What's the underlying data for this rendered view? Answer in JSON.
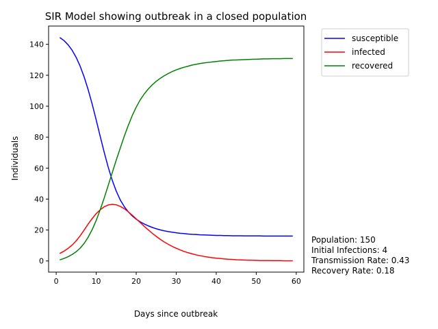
{
  "chart_data": {
    "type": "line",
    "title": "SIR Model showing outbreak in a closed population",
    "xlabel": "Days since outbreak",
    "ylabel": "Individuals",
    "xlim": [
      -1.9,
      61.9
    ],
    "ylim": [
      -7.2,
      151.8
    ],
    "xticks": [
      0,
      10,
      20,
      30,
      40,
      50,
      60
    ],
    "yticks": [
      0,
      20,
      40,
      60,
      80,
      100,
      120,
      140
    ],
    "grid": false,
    "legend_position": "outside top-right",
    "x": [
      1,
      2,
      3,
      4,
      5,
      6,
      7,
      8,
      9,
      10,
      11,
      12,
      13,
      14,
      15,
      16,
      17,
      18,
      19,
      20,
      21,
      22,
      23,
      24,
      25,
      26,
      27,
      28,
      29,
      30,
      31,
      32,
      33,
      34,
      35,
      36,
      37,
      38,
      39,
      40,
      41,
      42,
      43,
      44,
      45,
      46,
      47,
      48,
      49,
      50,
      51,
      52,
      53,
      54,
      55,
      56,
      57,
      58,
      59
    ],
    "series": [
      {
        "name": "susceptible",
        "color": "#0000ff",
        "values": [
          144.2,
          142.3,
          139.6,
          136.1,
          131.5,
          125.8,
          118.8,
          110.6,
          101.3,
          91.1,
          80.5,
          70.2,
          60.6,
          52.2,
          45.2,
          39.5,
          35.2,
          31.8,
          29.1,
          27.0,
          25.3,
          23.9,
          22.7,
          21.7,
          20.8,
          20.1,
          19.5,
          19.0,
          18.6,
          18.2,
          17.9,
          17.7,
          17.4,
          17.2,
          17.1,
          16.9,
          16.8,
          16.7,
          16.6,
          16.5,
          16.5,
          16.4,
          16.4,
          16.3,
          16.3,
          16.3,
          16.2,
          16.2,
          16.2,
          16.2,
          16.2,
          16.1,
          16.1,
          16.1,
          16.1,
          16.1,
          16.1,
          16.1,
          16.1
        ]
      },
      {
        "name": "infected",
        "color": "#ff0000",
        "values": [
          5.0,
          6.4,
          8.2,
          10.3,
          13.0,
          16.3,
          20.0,
          23.9,
          27.4,
          30.6,
          33.1,
          35.0,
          36.2,
          36.6,
          36.3,
          35.3,
          33.8,
          31.8,
          29.6,
          27.2,
          24.8,
          22.4,
          20.1,
          17.9,
          15.9,
          14.0,
          12.3,
          10.8,
          9.4,
          8.2,
          7.1,
          6.1,
          5.3,
          4.6,
          3.9,
          3.4,
          2.9,
          2.5,
          2.1,
          1.8,
          1.6,
          1.3,
          1.1,
          1.0,
          0.8,
          0.7,
          0.6,
          0.5,
          0.5,
          0.4,
          0.3,
          0.3,
          0.3,
          0.2,
          0.2,
          0.2,
          0.1,
          0.1,
          0.1
        ]
      },
      {
        "name": "recovered",
        "color": "#008000",
        "values": [
          0.8,
          1.7,
          2.8,
          4.2,
          6.0,
          8.3,
          11.4,
          15.4,
          20.3,
          26.2,
          33.1,
          40.7,
          48.8,
          57.0,
          65.1,
          72.8,
          80.5,
          87.5,
          93.9,
          99.4,
          104.1,
          107.9,
          111.1,
          113.8,
          116.1,
          118.0,
          119.7,
          121.1,
          122.4,
          123.5,
          124.4,
          125.2,
          125.9,
          126.6,
          127.1,
          127.6,
          128.0,
          128.3,
          128.6,
          128.9,
          129.2,
          129.4,
          129.6,
          129.8,
          129.9,
          130.0,
          130.1,
          130.2,
          130.3,
          130.4,
          130.5,
          130.6,
          130.6,
          130.7,
          130.7,
          130.7,
          130.8,
          130.8,
          130.8
        ]
      }
    ],
    "annotation": {
      "lines": [
        "Population: 150",
        "Initial Infections: 4",
        "Transmission Rate: 0.43",
        "Recovery Rate: 0.18"
      ]
    }
  }
}
